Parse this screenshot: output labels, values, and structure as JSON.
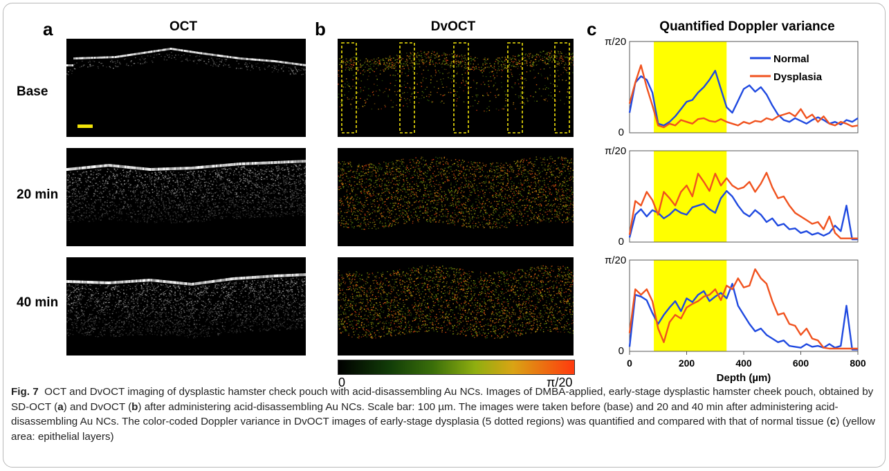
{
  "panels": {
    "a": {
      "letter": "a",
      "title": "OCT"
    },
    "b": {
      "letter": "b",
      "title": "DvOCT"
    },
    "c": {
      "letter": "c",
      "title": "Quantified Doppler variance"
    }
  },
  "rows": [
    "Base",
    "20 min",
    "40 min"
  ],
  "colorbar": {
    "min_label": "0",
    "max_label": "π/20"
  },
  "caption": {
    "label": "Fig. 7",
    "p1": "OCT and DvOCT imaging of dysplastic hamster check pouch with acid-disassembling Au NCs. Images of DMBA-applied, early-stage dysplastic hamster cheek pouch, obtained by SD-OCT (",
    "a": "a",
    "p2": ") and DvOCT (",
    "b": "b",
    "p3": ") after administering acid-disassembling Au NCs. Scale bar: 100 µm. The images were taken before (base) and 20 and 40 min after administering acid-disassembling Au NCs. The color-coded Doppler variance in DvOCT images of early-stage dysplasia (5 dotted regions) was quantified and compared with that of normal tissue (",
    "c": "c",
    "p4": ") (yellow area: epithelial layers)"
  },
  "chart_data": [
    {
      "type": "line",
      "title": "Quantified Doppler variance",
      "xlabel": "",
      "ylabel": "",
      "xlim": [
        0,
        800
      ],
      "ylim_labels": [
        "0",
        "π/20"
      ],
      "highlight_band": {
        "x": [
          85,
          340
        ],
        "color": "#ffff00"
      },
      "legend": "top-right",
      "series": [
        {
          "name": "Normal",
          "color": "#1f49e0",
          "x": [
            0,
            20,
            40,
            60,
            80,
            100,
            120,
            140,
            160,
            180,
            200,
            220,
            240,
            260,
            280,
            300,
            320,
            340,
            360,
            380,
            400,
            420,
            440,
            460,
            480,
            500,
            520,
            540,
            560,
            580,
            600,
            620,
            640,
            660,
            680,
            700,
            720,
            740,
            760,
            780,
            800
          ],
          "y": [
            0.22,
            0.55,
            0.62,
            0.58,
            0.44,
            0.1,
            0.08,
            0.12,
            0.18,
            0.26,
            0.34,
            0.36,
            0.44,
            0.5,
            0.58,
            0.68,
            0.48,
            0.28,
            0.22,
            0.35,
            0.48,
            0.52,
            0.45,
            0.5,
            0.42,
            0.3,
            0.2,
            0.14,
            0.12,
            0.16,
            0.13,
            0.1,
            0.14,
            0.17,
            0.14,
            0.1,
            0.12,
            0.09,
            0.14,
            0.12,
            0.16
          ]
        },
        {
          "name": "Dysplasia",
          "color": "#f0521e",
          "x": [
            0,
            20,
            40,
            60,
            80,
            100,
            120,
            140,
            160,
            180,
            200,
            220,
            240,
            260,
            280,
            300,
            320,
            340,
            360,
            380,
            400,
            420,
            440,
            460,
            480,
            500,
            520,
            540,
            560,
            580,
            600,
            620,
            640,
            660,
            680,
            700,
            720,
            740,
            760,
            780,
            800
          ],
          "y": [
            0.32,
            0.55,
            0.74,
            0.5,
            0.3,
            0.08,
            0.06,
            0.1,
            0.08,
            0.14,
            0.12,
            0.1,
            0.15,
            0.16,
            0.13,
            0.12,
            0.15,
            0.12,
            0.1,
            0.08,
            0.12,
            0.1,
            0.13,
            0.12,
            0.16,
            0.14,
            0.18,
            0.2,
            0.22,
            0.18,
            0.26,
            0.16,
            0.2,
            0.12,
            0.18,
            0.1,
            0.08,
            0.12,
            0.1,
            0.07,
            0.08
          ]
        }
      ]
    },
    {
      "type": "line",
      "xlim": [
        0,
        800
      ],
      "ylim_labels": [
        "0",
        "π/20"
      ],
      "highlight_band": {
        "x": [
          85,
          340
        ],
        "color": "#ffff00"
      },
      "series": [
        {
          "name": "Normal",
          "color": "#1f49e0",
          "x": [
            0,
            20,
            40,
            60,
            80,
            100,
            120,
            140,
            160,
            180,
            200,
            220,
            240,
            260,
            280,
            300,
            320,
            340,
            360,
            380,
            400,
            420,
            440,
            460,
            480,
            500,
            520,
            540,
            560,
            580,
            600,
            620,
            640,
            660,
            680,
            700,
            720,
            740,
            760,
            780,
            800
          ],
          "y": [
            0.05,
            0.3,
            0.36,
            0.28,
            0.35,
            0.32,
            0.26,
            0.3,
            0.36,
            0.32,
            0.3,
            0.38,
            0.4,
            0.42,
            0.36,
            0.32,
            0.48,
            0.56,
            0.5,
            0.4,
            0.32,
            0.28,
            0.35,
            0.3,
            0.22,
            0.26,
            0.18,
            0.2,
            0.14,
            0.15,
            0.1,
            0.12,
            0.08,
            0.1,
            0.07,
            0.1,
            0.18,
            0.12,
            0.4,
            0.03,
            0.03
          ]
        },
        {
          "name": "Dysplasia",
          "color": "#f0521e",
          "x": [
            0,
            20,
            40,
            60,
            80,
            100,
            120,
            140,
            160,
            180,
            200,
            220,
            240,
            260,
            280,
            300,
            320,
            340,
            360,
            380,
            400,
            420,
            440,
            460,
            480,
            500,
            520,
            540,
            560,
            580,
            600,
            620,
            640,
            660,
            680,
            700,
            720,
            740,
            760,
            780,
            800
          ],
          "y": [
            0.08,
            0.45,
            0.4,
            0.55,
            0.46,
            0.3,
            0.55,
            0.48,
            0.4,
            0.55,
            0.62,
            0.5,
            0.75,
            0.66,
            0.56,
            0.75,
            0.62,
            0.7,
            0.62,
            0.58,
            0.6,
            0.66,
            0.55,
            0.64,
            0.76,
            0.6,
            0.48,
            0.5,
            0.4,
            0.32,
            0.28,
            0.24,
            0.2,
            0.22,
            0.14,
            0.28,
            0.1,
            0.04,
            0.04,
            0.04,
            0.04
          ]
        }
      ]
    },
    {
      "type": "line",
      "xlim": [
        0,
        800
      ],
      "xticks": [
        0,
        200,
        400,
        600,
        800
      ],
      "xlabel": "Depth (µm)",
      "ylim_labels": [
        "0",
        "π/20"
      ],
      "highlight_band": {
        "x": [
          85,
          340
        ],
        "color": "#ffff00"
      },
      "series": [
        {
          "name": "Normal",
          "color": "#1f49e0",
          "x": [
            0,
            20,
            40,
            60,
            80,
            100,
            120,
            140,
            160,
            180,
            200,
            220,
            240,
            260,
            280,
            300,
            320,
            340,
            360,
            380,
            400,
            420,
            440,
            460,
            480,
            500,
            520,
            540,
            560,
            580,
            600,
            620,
            640,
            660,
            680,
            700,
            720,
            740,
            760,
            780,
            800
          ],
          "y": [
            0.05,
            0.62,
            0.6,
            0.56,
            0.42,
            0.3,
            0.4,
            0.48,
            0.55,
            0.44,
            0.58,
            0.54,
            0.62,
            0.66,
            0.55,
            0.6,
            0.64,
            0.58,
            0.74,
            0.5,
            0.4,
            0.3,
            0.22,
            0.25,
            0.18,
            0.14,
            0.1,
            0.12,
            0.06,
            0.05,
            0.04,
            0.08,
            0.05,
            0.06,
            0.04,
            0.08,
            0.04,
            0.06,
            0.5,
            0.02,
            0.02
          ]
        },
        {
          "name": "Dysplasia",
          "color": "#f0521e",
          "x": [
            0,
            20,
            40,
            60,
            80,
            100,
            120,
            140,
            160,
            180,
            200,
            220,
            240,
            260,
            280,
            300,
            320,
            340,
            360,
            380,
            400,
            420,
            440,
            460,
            480,
            500,
            520,
            540,
            560,
            580,
            600,
            620,
            640,
            660,
            680,
            700,
            720,
            740,
            760,
            780,
            800
          ],
          "y": [
            0.2,
            0.68,
            0.62,
            0.68,
            0.55,
            0.25,
            0.1,
            0.32,
            0.4,
            0.36,
            0.48,
            0.52,
            0.55,
            0.6,
            0.62,
            0.68,
            0.56,
            0.72,
            0.68,
            0.8,
            0.7,
            0.72,
            0.9,
            0.8,
            0.74,
            0.55,
            0.4,
            0.42,
            0.3,
            0.28,
            0.18,
            0.25,
            0.14,
            0.12,
            0.04,
            0.03,
            0.03,
            0.03,
            0.03,
            0.03,
            0.03
          ]
        }
      ]
    }
  ]
}
